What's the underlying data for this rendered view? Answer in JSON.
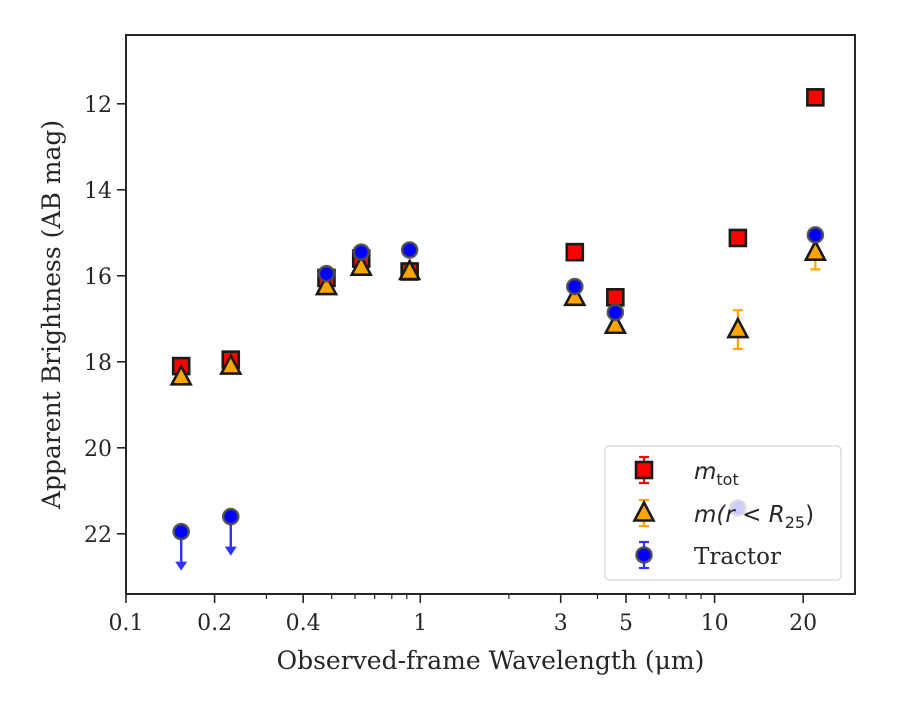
{
  "chart_data": {
    "type": "scatter",
    "title": "",
    "xlabel": "Observed-frame Wavelength (μm)",
    "ylabel": "Apparent Brightness (AB mag)",
    "xscale": "log",
    "xlim": [
      0.1,
      30
    ],
    "ylim": [
      23.4,
      10.4
    ],
    "y_inverted": true,
    "x_ticks": [
      0.1,
      0.2,
      0.4,
      1,
      3,
      5,
      10,
      20
    ],
    "x_tick_labels": [
      "0.1",
      "0.2",
      "0.4",
      "1",
      "3",
      "5",
      "10",
      "20"
    ],
    "y_ticks": [
      12,
      14,
      16,
      18,
      20,
      22
    ],
    "y_tick_labels": [
      "12",
      "14",
      "16",
      "18",
      "20",
      "22"
    ],
    "legend_position": "lower-right",
    "grid": false,
    "series": [
      {
        "name": "m_tot",
        "legend_label": "m",
        "legend_sub": "tot",
        "marker": "square",
        "color": "#ff0000",
        "edge_color": "#1a1a1a",
        "points": [
          {
            "x": 0.154,
            "y": 18.1,
            "err": 0.05
          },
          {
            "x": 0.227,
            "y": 17.95,
            "err": 0.05
          },
          {
            "x": 0.48,
            "y": 16.05,
            "err": 0.05
          },
          {
            "x": 0.63,
            "y": 15.6,
            "err": 0.05
          },
          {
            "x": 0.92,
            "y": 15.9,
            "err": 0.05
          },
          {
            "x": 3.35,
            "y": 15.45,
            "err": 0.05
          },
          {
            "x": 4.6,
            "y": 16.5,
            "err": 0.05
          },
          {
            "x": 12.0,
            "y": 15.12,
            "err": 0.05
          },
          {
            "x": 22.0,
            "y": 11.85,
            "err": 0.05
          }
        ]
      },
      {
        "name": "m(r < R25)",
        "legend_label": "m(r < R",
        "legend_sub": "25",
        "legend_suffix": ")",
        "marker": "triangle",
        "color": "#ffa500",
        "edge_color": "#1a1a1a",
        "points": [
          {
            "x": 0.154,
            "y": 18.35,
            "err": 0.05
          },
          {
            "x": 0.227,
            "y": 18.1,
            "err": 0.05
          },
          {
            "x": 0.48,
            "y": 16.25,
            "err": 0.05
          },
          {
            "x": 0.63,
            "y": 15.8,
            "err": 0.05
          },
          {
            "x": 0.92,
            "y": 15.9,
            "err": 0.05
          },
          {
            "x": 3.35,
            "y": 16.5,
            "err": 0.05
          },
          {
            "x": 4.6,
            "y": 17.15,
            "err": 0.05
          },
          {
            "x": 12.0,
            "y": 17.25,
            "err": 0.45
          },
          {
            "x": 22.0,
            "y": 15.45,
            "err": 0.4
          }
        ]
      },
      {
        "name": "Tractor",
        "legend_label": "Tractor",
        "marker": "circle",
        "color": "#0000ff",
        "edge_color": "#4d4d4d",
        "points": [
          {
            "x": 0.154,
            "y": 21.95,
            "upper_limit": true
          },
          {
            "x": 0.227,
            "y": 21.6,
            "upper_limit": true
          },
          {
            "x": 0.48,
            "y": 15.95,
            "err": 0.03
          },
          {
            "x": 0.63,
            "y": 15.45,
            "err": 0.03
          },
          {
            "x": 0.92,
            "y": 15.4,
            "err": 0.03
          },
          {
            "x": 3.35,
            "y": 16.25,
            "err": 0.03
          },
          {
            "x": 4.6,
            "y": 16.85,
            "err": 0.05
          },
          {
            "x": 12.0,
            "y": 21.4,
            "err": 0.1
          },
          {
            "x": 22.0,
            "y": 15.05,
            "err": 0.05
          }
        ]
      }
    ]
  }
}
